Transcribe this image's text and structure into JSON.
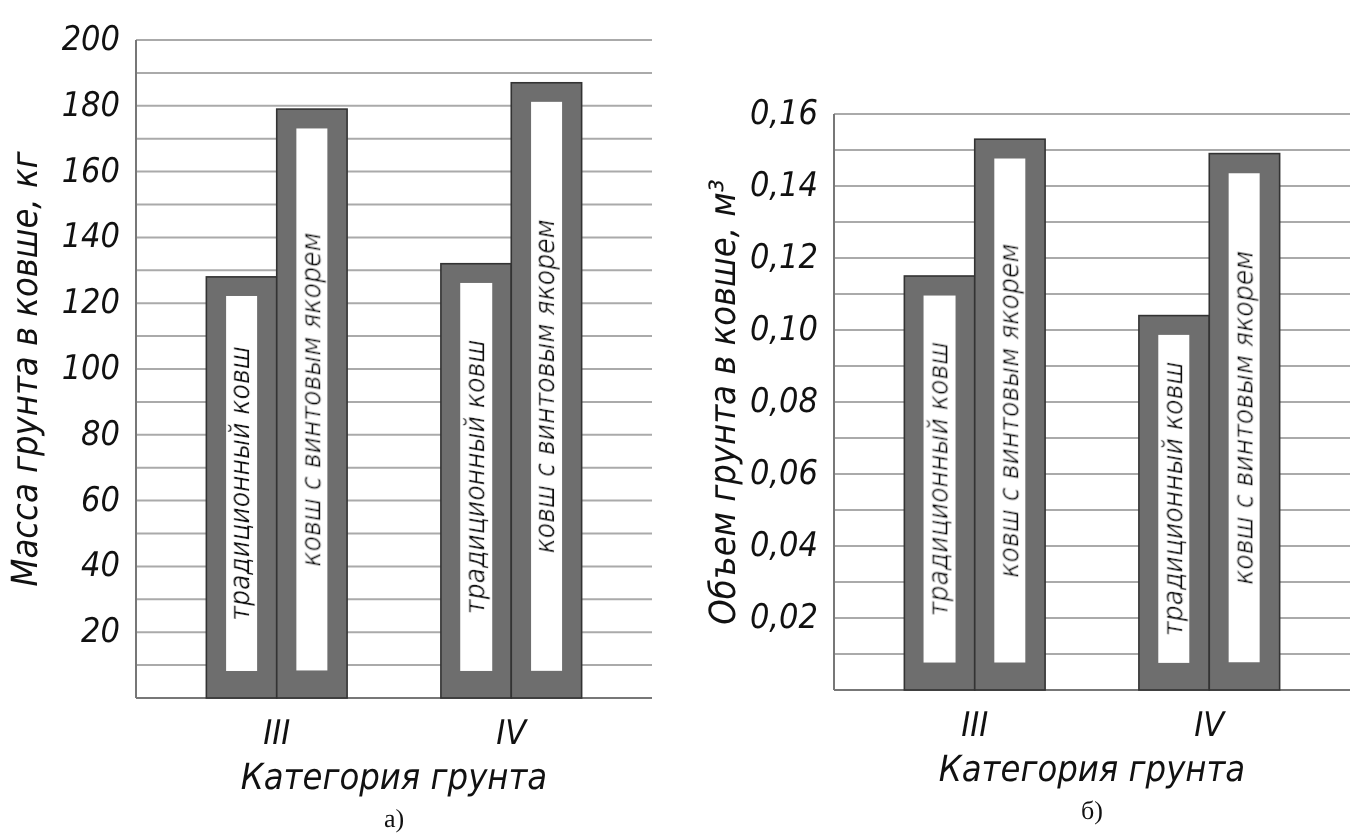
{
  "chart_data": [
    {
      "type": "bar",
      "categories": [
        "III",
        "IV"
      ],
      "xlabel": "Категория грунта",
      "ylabel": "Масса грунта в ковше, кг",
      "series": [
        {
          "name": "традиционный ковш",
          "color": "#6e6e6e",
          "values": [
            128,
            132
          ]
        },
        {
          "name": "ковш с винтовым якорем",
          "color": "#6e6e6e",
          "values": [
            179,
            187
          ]
        }
      ],
      "ylim": [
        0,
        200
      ],
      "yticks": [
        {
          "value": 10,
          "label": null
        },
        20,
        {
          "value": 30,
          "label": null
        },
        40,
        {
          "value": 50,
          "label": null
        },
        60,
        {
          "value": 70,
          "label": null
        },
        80,
        {
          "value": 90,
          "label": null
        },
        100,
        {
          "value": 110,
          "label": null
        },
        120,
        {
          "value": 130,
          "label": null
        },
        140,
        {
          "value": 150,
          "label": null
        },
        160,
        {
          "value": 170,
          "label": null
        },
        180,
        {
          "value": 190,
          "label": null
        },
        200
      ],
      "grid": "y",
      "annotations": [
        "а)"
      ]
    },
    {
      "type": "bar",
      "categories": [
        "III",
        "IV"
      ],
      "xlabel": "Категория грунта",
      "ylabel": "Объем грунта в ковше, м³",
      "series": [
        {
          "name": "традиционный ковш",
          "color": "#6e6e6e",
          "values": [
            0.115,
            0.104
          ]
        },
        {
          "name": "ковш с винтовым якорем",
          "color": "#6e6e6e",
          "values": [
            0.153,
            0.149
          ]
        }
      ],
      "ylim": [
        0,
        0.16
      ],
      "yticks": [
        {
          "value": 0.01,
          "label": null
        },
        {
          "value": 0.02,
          "label": "0,02"
        },
        {
          "value": 0.03,
          "label": null
        },
        {
          "value": 0.04,
          "label": "0,04"
        },
        {
          "value": 0.05,
          "label": null
        },
        {
          "value": 0.06,
          "label": "0,06"
        },
        {
          "value": 0.07,
          "label": null
        },
        {
          "value": 0.08,
          "label": "0,08"
        },
        {
          "value": 0.09,
          "label": null
        },
        {
          "value": 0.1,
          "label": "0,10"
        },
        {
          "value": 0.11,
          "label": null
        },
        {
          "value": 0.12,
          "label": "0,12"
        },
        {
          "value": 0.13,
          "label": null
        },
        {
          "value": 0.14,
          "label": "0,14"
        },
        {
          "value": 0.15,
          "label": null
        },
        {
          "value": 0.16,
          "label": "0,16"
        }
      ],
      "grid": "y",
      "annotations": [
        "б)"
      ]
    }
  ]
}
